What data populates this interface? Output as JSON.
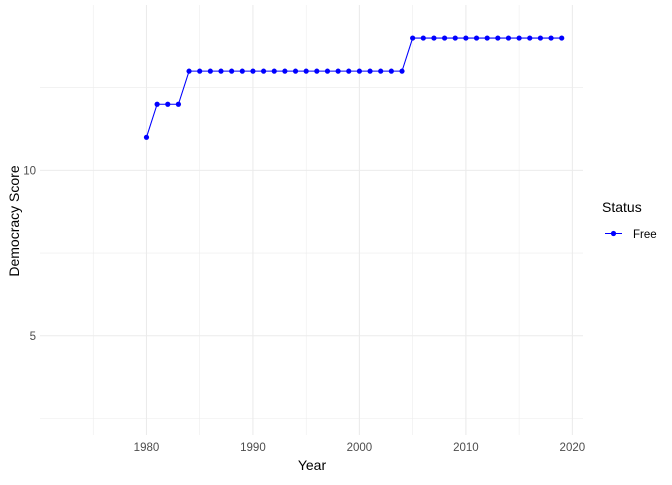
{
  "chart_data": {
    "type": "line",
    "title": "",
    "xlabel": "Year",
    "ylabel": "Democracy Score",
    "xlim": [
      1970,
      2021
    ],
    "ylim": [
      2,
      15
    ],
    "x_ticks": [
      1980,
      1990,
      2000,
      2010,
      2020
    ],
    "y_ticks": [
      5,
      10
    ],
    "grid": true,
    "legend": {
      "title": "Status",
      "position": "right",
      "entries": [
        {
          "label": "Free",
          "color": "#0000ff"
        }
      ]
    },
    "series": [
      {
        "name": "Free",
        "color": "#0000ff",
        "x": [
          1980,
          1981,
          1982,
          1983,
          1984,
          1985,
          1986,
          1987,
          1988,
          1989,
          1990,
          1991,
          1992,
          1993,
          1994,
          1995,
          1996,
          1997,
          1998,
          1999,
          2000,
          2001,
          2002,
          2003,
          2004,
          2005,
          2006,
          2007,
          2008,
          2009,
          2010,
          2011,
          2012,
          2013,
          2014,
          2015,
          2016,
          2017,
          2018,
          2019
        ],
        "y": [
          11,
          12,
          12,
          12,
          13,
          13,
          13,
          13,
          13,
          13,
          13,
          13,
          13,
          13,
          13,
          13,
          13,
          13,
          13,
          13,
          13,
          13,
          13,
          13,
          13,
          14,
          14,
          14,
          14,
          14,
          14,
          14,
          14,
          14,
          14,
          14,
          14,
          14,
          14,
          14
        ]
      }
    ]
  }
}
